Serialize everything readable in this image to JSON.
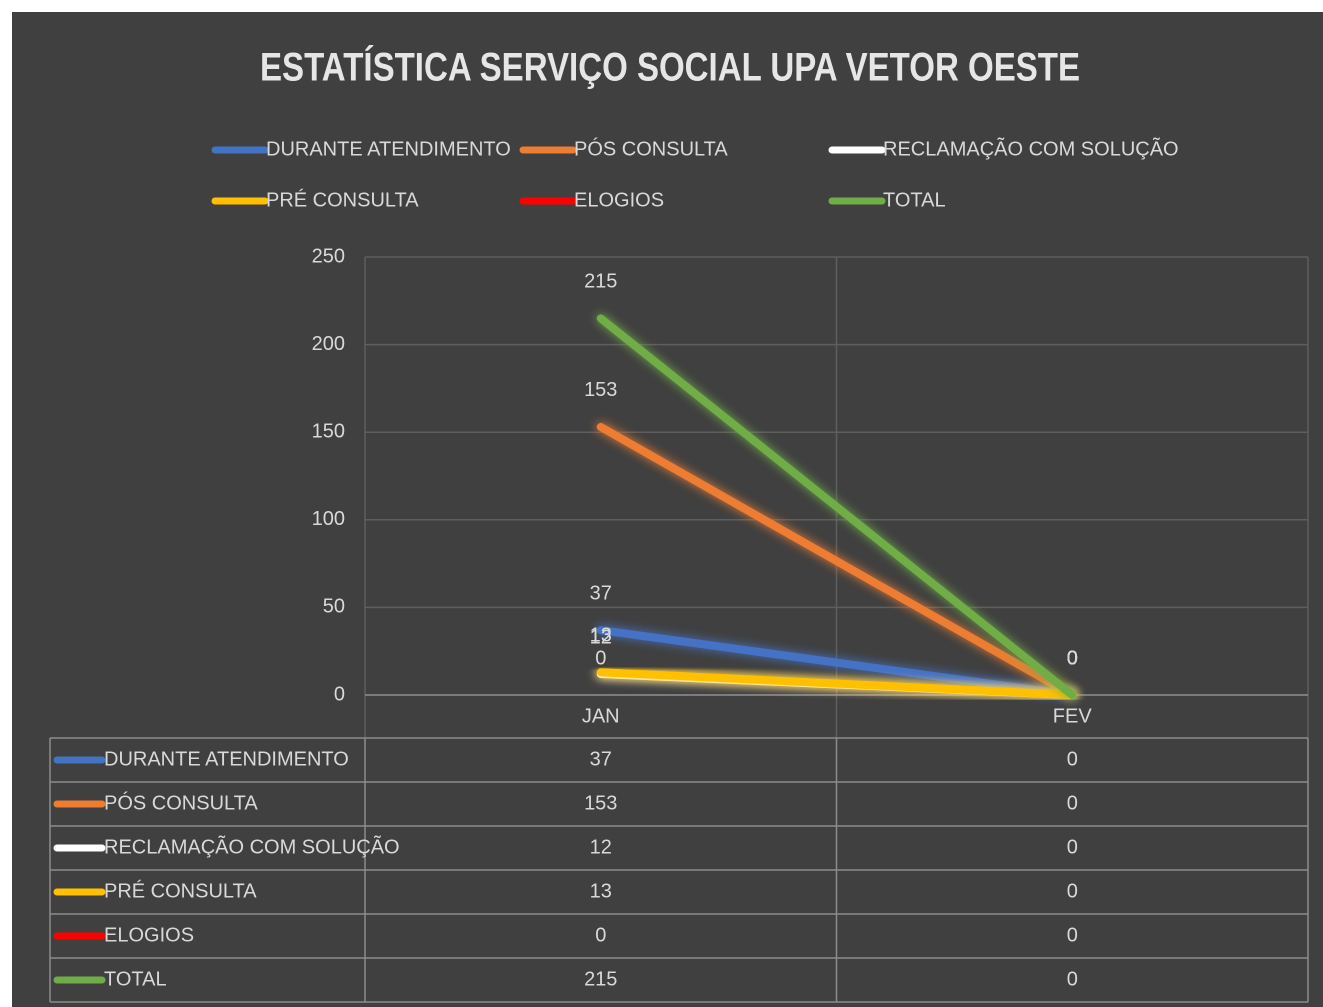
{
  "chart_data": {
    "type": "line",
    "title": "ESTATÍSTICA SERVIÇO SOCIAL UPA VETOR OESTE",
    "categories": [
      "JAN",
      "FEV"
    ],
    "series": [
      {
        "name": "DURANTE ATENDIMENTO",
        "color": "#4472c4",
        "values": [
          37,
          0
        ]
      },
      {
        "name": "PÓS CONSULTA",
        "color": "#ed7d31",
        "values": [
          153,
          0
        ]
      },
      {
        "name": "RECLAMAÇÃO COM SOLUÇÃO",
        "color": "#ffffff",
        "values": [
          12,
          0
        ]
      },
      {
        "name": "PRÉ CONSULTA",
        "color": "#ffc000",
        "values": [
          13,
          0
        ]
      },
      {
        "name": "ELOGIOS",
        "color": "#ff0000",
        "values": [
          0,
          0
        ]
      },
      {
        "name": "TOTAL",
        "color": "#70ad47",
        "values": [
          215,
          0
        ]
      }
    ],
    "ylim": [
      0,
      250
    ],
    "yticks": [
      0,
      50,
      100,
      150,
      200,
      250
    ],
    "grid": true,
    "legend": "top"
  }
}
